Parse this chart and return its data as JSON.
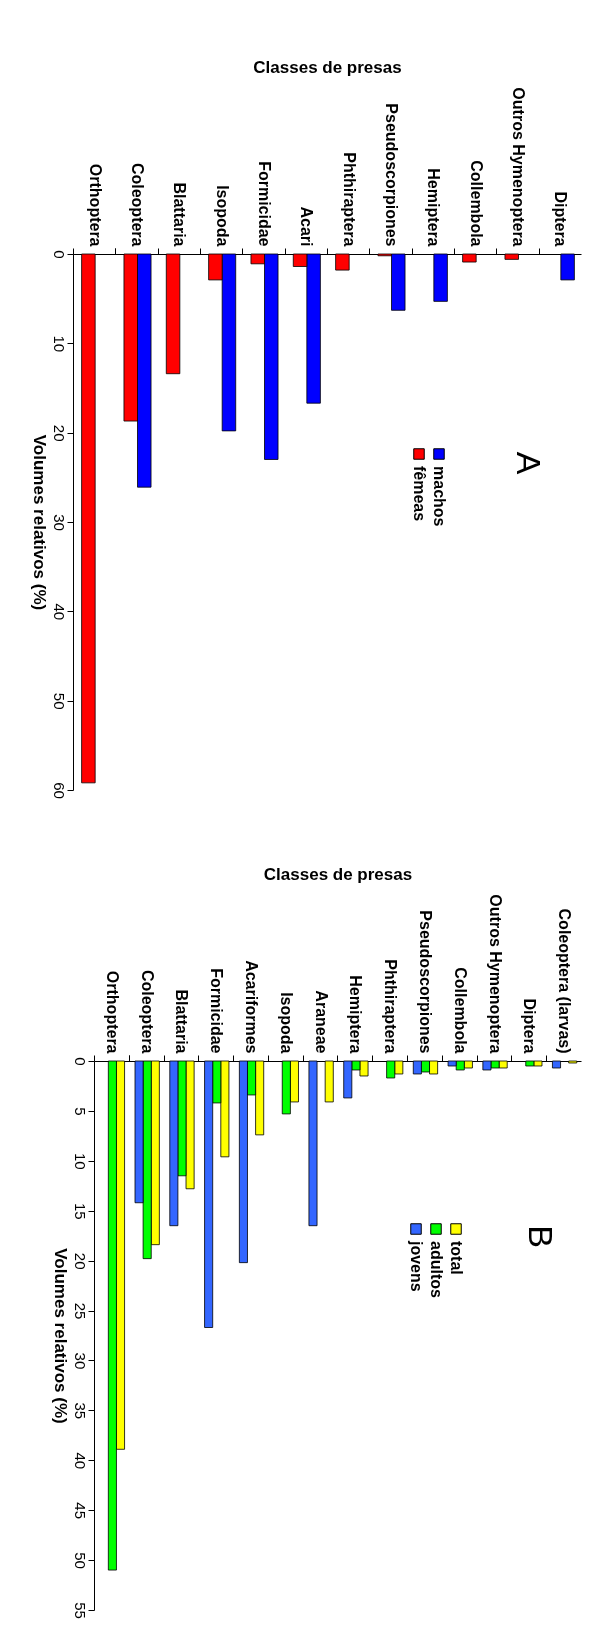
{
  "chart_data": [
    {
      "type": "bar",
      "title": "A",
      "xlabel": "Classes de presas",
      "ylabel": "Volumes relativos (%)",
      "categories": [
        "Orthoptera",
        "Coleoptera",
        "Blattaria",
        "Isopoda",
        "Formicidae",
        "Acari",
        "Phthiraptera",
        "Pseudoscorpiones",
        "Hemiptera",
        "Collembola",
        "Outros Hymenoptera",
        "Diptera"
      ],
      "series": [
        {
          "name": "machos",
          "color": "#0000ff",
          "values": [
            null,
            26.1,
            null,
            19.8,
            23.0,
            16.7,
            null,
            6.3,
            5.3,
            null,
            null,
            2.9
          ]
        },
        {
          "name": "fêmeas",
          "color": "#ff0000",
          "values": [
            59.2,
            18.7,
            13.4,
            2.9,
            1.1,
            1.4,
            1.8,
            0.2,
            null,
            0.9,
            0.6,
            null
          ]
        }
      ],
      "ylim": [
        60,
        0
      ],
      "yticks": [
        0,
        10,
        20,
        30,
        40,
        50,
        60
      ],
      "grid": false,
      "legend": "right"
    },
    {
      "type": "bar",
      "title": "B",
      "xlabel": "Classes de presas",
      "ylabel": "Volumes relativos (%)",
      "categories": [
        "Orthoptera",
        "Coleoptera",
        "Blattaria",
        "Formicidae",
        "Acariformes",
        "Isopoda",
        "Araneae",
        "Hemiptera",
        "Phthiraptera",
        "Pseudoscorpiones",
        "Collembola",
        "Outros Hymenoptera",
        "Diptera",
        "Coleoptera (larvas)"
      ],
      "series": [
        {
          "name": "total",
          "color": "#ffff00",
          "values": [
            38.9,
            18.4,
            12.8,
            9.6,
            7.4,
            4.1,
            4.1,
            1.5,
            1.3,
            1.3,
            0.7,
            0.7,
            0.5,
            0.2
          ]
        },
        {
          "name": "adultos",
          "color": "#00ff00",
          "values": [
            51.0,
            19.8,
            11.5,
            4.2,
            3.4,
            5.3,
            null,
            0.9,
            1.7,
            1.1,
            0.9,
            0.7,
            0.5,
            null
          ]
        },
        {
          "name": "jovens",
          "color": "#3366ff",
          "values": [
            null,
            14.2,
            16.5,
            26.7,
            20.2,
            null,
            16.5,
            3.7,
            null,
            1.3,
            0.5,
            0.9,
            null,
            0.7
          ]
        }
      ],
      "ylim": [
        55,
        0
      ],
      "yticks": [
        0,
        5,
        10,
        15,
        20,
        25,
        30,
        35,
        40,
        45,
        50,
        55
      ],
      "grid": false,
      "legend": "right"
    }
  ]
}
